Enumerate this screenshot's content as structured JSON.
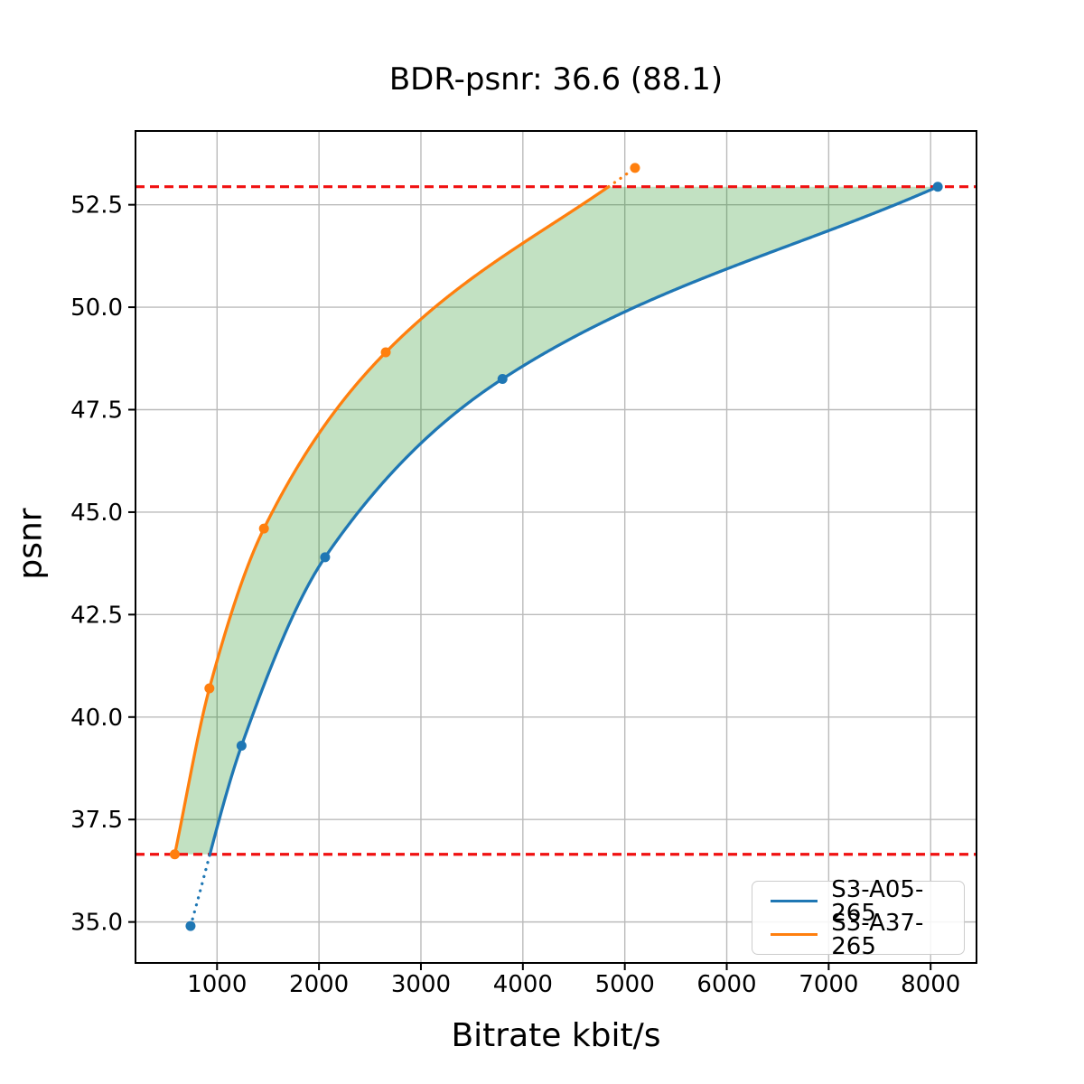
{
  "chart_data": {
    "type": "line",
    "title": "BDR-psnr: 36.6 (88.1)",
    "bdr_psnr": 36.6,
    "bdr_percent": 88.1,
    "xlabel": "Bitrate kbit/s",
    "ylabel": "psnr",
    "xlim": [
      200,
      8450
    ],
    "ylim": [
      34.0,
      54.3
    ],
    "xticks": [
      1000,
      2000,
      3000,
      4000,
      5000,
      6000,
      7000,
      8000
    ],
    "yticks": [
      35.0,
      37.5,
      40.0,
      42.5,
      45.0,
      47.5,
      50.0,
      52.5
    ],
    "grid": true,
    "legend_position": "lower right",
    "series": [
      {
        "name": "S3-A05-265",
        "color": "#1f77b4",
        "marker": "circle",
        "x": [
          740,
          1240,
          2060,
          3800,
          8070
        ],
        "y": [
          34.9,
          39.3,
          43.9,
          48.25,
          52.94
        ]
      },
      {
        "name": "S3-A37-265",
        "color": "#ff7f0e",
        "marker": "circle",
        "x": [
          585,
          925,
          1460,
          2655,
          5100
        ],
        "y": [
          36.65,
          40.7,
          44.6,
          48.9,
          53.4
        ]
      }
    ],
    "reference_lines": {
      "orientation": "horizontal",
      "style": "dashed",
      "color": "#f01010",
      "values": [
        36.65,
        52.94
      ]
    },
    "shaded_region": {
      "description": "area between the two rate-distortion curves clipped to the reference psnr bounds",
      "from_psnr": 36.65,
      "to_psnr": 52.94,
      "color": "rgba(0,128,0,0.24)"
    },
    "style_colors": {
      "grid": "#bbbbbb",
      "spine": "#000000",
      "background": "#ffffff",
      "text": "#000000"
    }
  }
}
